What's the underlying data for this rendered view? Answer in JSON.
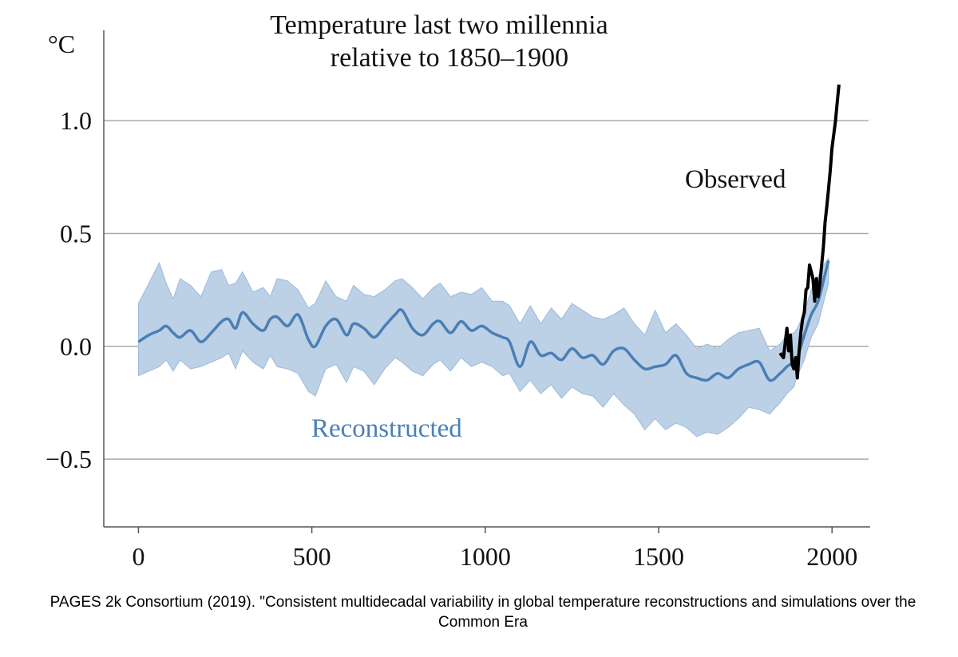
{
  "chart_data": {
    "type": "area",
    "title_line1": "Temperature last two millennia",
    "title_line2": "relative to 1850–1900",
    "ylabel": "°C",
    "xlabel": "",
    "xlim": [
      -100,
      2110
    ],
    "ylim": [
      -0.8,
      1.4
    ],
    "xticks": [
      0,
      500,
      1000,
      1500,
      2000
    ],
    "xtick_labels": [
      "0",
      "500",
      "1000",
      "1500",
      "2000"
    ],
    "yticks": [
      -0.5,
      0.0,
      0.5,
      1.0
    ],
    "ytick_labels": [
      "−0.5",
      "0.0",
      "0.5",
      "1.0"
    ],
    "grid": "horizontal",
    "annotations": {
      "observed": "Observed",
      "reconstructed": "Reconstructed"
    },
    "series": [
      {
        "name": "Reconstructed",
        "color": "#4a7fb5",
        "band_color": "#bcd0e6",
        "x": [
          0,
          30,
          60,
          80,
          100,
          120,
          150,
          180,
          210,
          240,
          260,
          280,
          300,
          330,
          360,
          380,
          400,
          430,
          460,
          490,
          510,
          540,
          570,
          600,
          620,
          650,
          680,
          710,
          740,
          760,
          790,
          820,
          850,
          870,
          900,
          930,
          960,
          990,
          1020,
          1050,
          1070,
          1100,
          1130,
          1160,
          1190,
          1220,
          1250,
          1280,
          1310,
          1340,
          1370,
          1400,
          1430,
          1460,
          1490,
          1520,
          1550,
          1580,
          1610,
          1640,
          1670,
          1700,
          1730,
          1760,
          1790,
          1820,
          1850,
          1870,
          1890,
          1900,
          1920,
          1940,
          1960,
          1980,
          1990
        ],
        "mean": [
          0.02,
          0.05,
          0.07,
          0.09,
          0.06,
          0.04,
          0.07,
          0.02,
          0.06,
          0.11,
          0.12,
          0.08,
          0.15,
          0.1,
          0.07,
          0.12,
          0.13,
          0.09,
          0.14,
          0.03,
          0.0,
          0.09,
          0.12,
          0.05,
          0.1,
          0.08,
          0.04,
          0.09,
          0.14,
          0.16,
          0.08,
          0.05,
          0.1,
          0.11,
          0.06,
          0.11,
          0.07,
          0.09,
          0.06,
          0.04,
          0.02,
          -0.09,
          0.02,
          -0.04,
          -0.03,
          -0.06,
          -0.01,
          -0.05,
          -0.04,
          -0.08,
          -0.02,
          -0.01,
          -0.06,
          -0.1,
          -0.09,
          -0.08,
          -0.04,
          -0.12,
          -0.14,
          -0.15,
          -0.12,
          -0.14,
          -0.1,
          -0.08,
          -0.07,
          -0.15,
          -0.12,
          -0.09,
          -0.07,
          -0.05,
          0.05,
          0.14,
          0.2,
          0.32,
          0.38
        ],
        "upper": [
          0.19,
          0.28,
          0.37,
          0.28,
          0.21,
          0.3,
          0.27,
          0.22,
          0.33,
          0.34,
          0.27,
          0.28,
          0.33,
          0.24,
          0.26,
          0.22,
          0.3,
          0.29,
          0.25,
          0.17,
          0.19,
          0.29,
          0.22,
          0.2,
          0.27,
          0.23,
          0.22,
          0.25,
          0.29,
          0.3,
          0.26,
          0.21,
          0.26,
          0.28,
          0.22,
          0.24,
          0.23,
          0.26,
          0.2,
          0.2,
          0.18,
          0.1,
          0.18,
          0.1,
          0.17,
          0.12,
          0.19,
          0.16,
          0.13,
          0.12,
          0.14,
          0.17,
          0.1,
          0.05,
          0.16,
          0.06,
          0.1,
          0.05,
          -0.01,
          0.01,
          -0.01,
          0.03,
          0.06,
          0.07,
          0.08,
          -0.02,
          0.01,
          0.05,
          0.06,
          0.08,
          0.15,
          0.25,
          0.31,
          0.37,
          0.39
        ],
        "lower": [
          -0.13,
          -0.11,
          -0.09,
          -0.06,
          -0.11,
          -0.06,
          -0.1,
          -0.09,
          -0.07,
          -0.05,
          -0.03,
          -0.1,
          -0.02,
          -0.07,
          -0.1,
          -0.04,
          -0.09,
          -0.1,
          -0.12,
          -0.2,
          -0.22,
          -0.1,
          -0.08,
          -0.16,
          -0.09,
          -0.11,
          -0.17,
          -0.1,
          -0.05,
          -0.07,
          -0.11,
          -0.13,
          -0.08,
          -0.06,
          -0.11,
          -0.05,
          -0.09,
          -0.07,
          -0.09,
          -0.13,
          -0.12,
          -0.2,
          -0.15,
          -0.21,
          -0.17,
          -0.23,
          -0.18,
          -0.21,
          -0.22,
          -0.27,
          -0.21,
          -0.26,
          -0.3,
          -0.37,
          -0.32,
          -0.37,
          -0.34,
          -0.36,
          -0.4,
          -0.38,
          -0.39,
          -0.36,
          -0.32,
          -0.27,
          -0.28,
          -0.3,
          -0.25,
          -0.21,
          -0.18,
          -0.13,
          -0.06,
          0.04,
          0.1,
          0.22,
          0.28
        ]
      },
      {
        "name": "Observed",
        "color": "#000000",
        "x": [
          1850,
          1860,
          1870,
          1875,
          1880,
          1885,
          1890,
          1895,
          1900,
          1905,
          1910,
          1915,
          1920,
          1925,
          1930,
          1935,
          1940,
          1945,
          1950,
          1955,
          1960,
          1965,
          1970,
          1975,
          1980,
          1985,
          1990,
          1995,
          2000,
          2005,
          2010,
          2015,
          2020
        ],
        "values": [
          -0.03,
          -0.05,
          0.08,
          -0.02,
          0.05,
          -0.08,
          -0.1,
          -0.05,
          -0.14,
          -0.02,
          0.06,
          0.12,
          0.15,
          0.25,
          0.26,
          0.36,
          0.33,
          0.3,
          0.2,
          0.3,
          0.22,
          0.28,
          0.36,
          0.44,
          0.55,
          0.62,
          0.7,
          0.78,
          0.88,
          0.94,
          1.0,
          1.08,
          1.16
        ]
      }
    ]
  },
  "caption": "PAGES 2k Consortium (2019). \"Consistent multidecadal variability in global temperature reconstructions and simulations over the Common Era"
}
